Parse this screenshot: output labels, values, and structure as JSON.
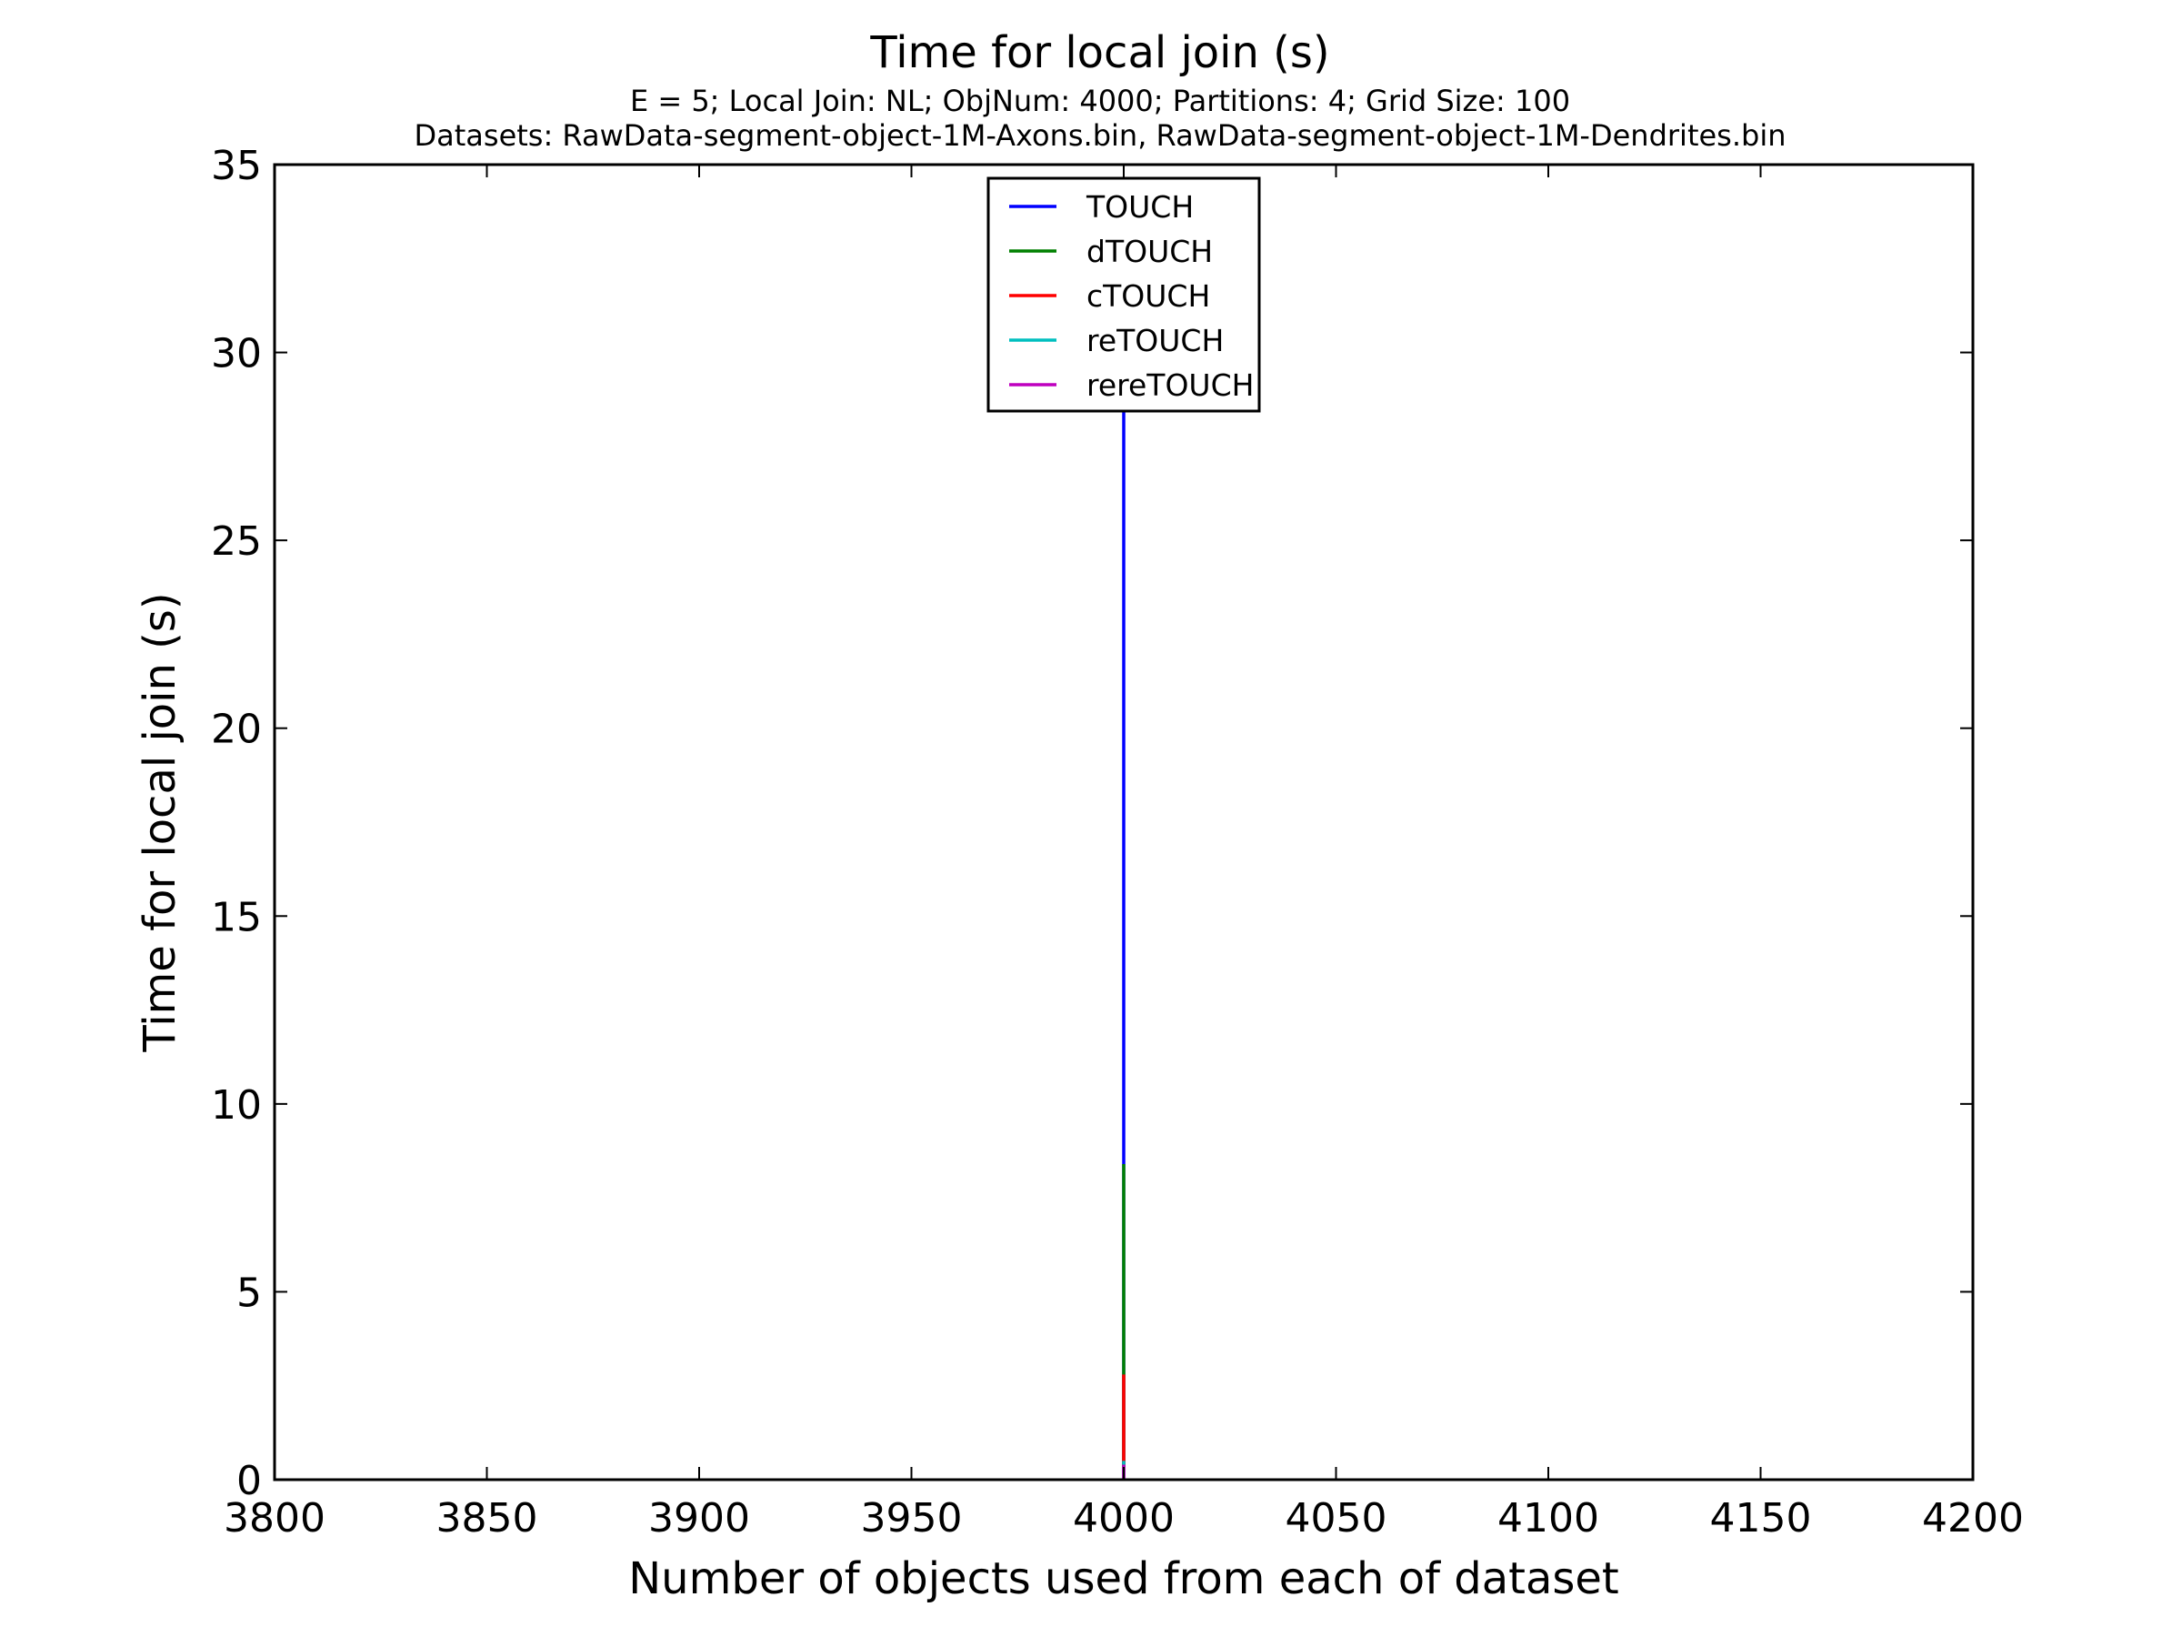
{
  "chart_data": {
    "type": "line",
    "title": "Time for local join (s)",
    "subtitle_lines": [
      "E = 5; Local Join: NL; ObjNum: 4000; Partitions: 4; Grid Size: 100",
      "Datasets: RawData-segment-object-1M-Axons.bin, RawData-segment-object-1M-Dendrites.bin"
    ],
    "xlabel": "Number of objects used from each of dataset",
    "ylabel": "Time for local join (s)",
    "xlim": [
      3800,
      4200
    ],
    "ylim": [
      0,
      35
    ],
    "xticks": [
      3800,
      3850,
      3900,
      3950,
      4000,
      4050,
      4100,
      4150,
      4200
    ],
    "yticks": [
      0,
      5,
      10,
      15,
      20,
      25,
      30,
      35
    ],
    "x": [
      4000
    ],
    "grid": false,
    "legend_position": "upper center",
    "series": [
      {
        "name": "TOUCH",
        "color": "#0000ff",
        "values": [
          28.5
        ]
      },
      {
        "name": "dTOUCH",
        "color": "#008000",
        "values": [
          8.4
        ]
      },
      {
        "name": "cTOUCH",
        "color": "#ff0000",
        "values": [
          2.8
        ]
      },
      {
        "name": "reTOUCH",
        "color": "#00bfbf",
        "values": [
          0.5
        ]
      },
      {
        "name": "rereTOUCH",
        "color": "#bf00bf",
        "values": [
          0.4
        ]
      }
    ]
  }
}
